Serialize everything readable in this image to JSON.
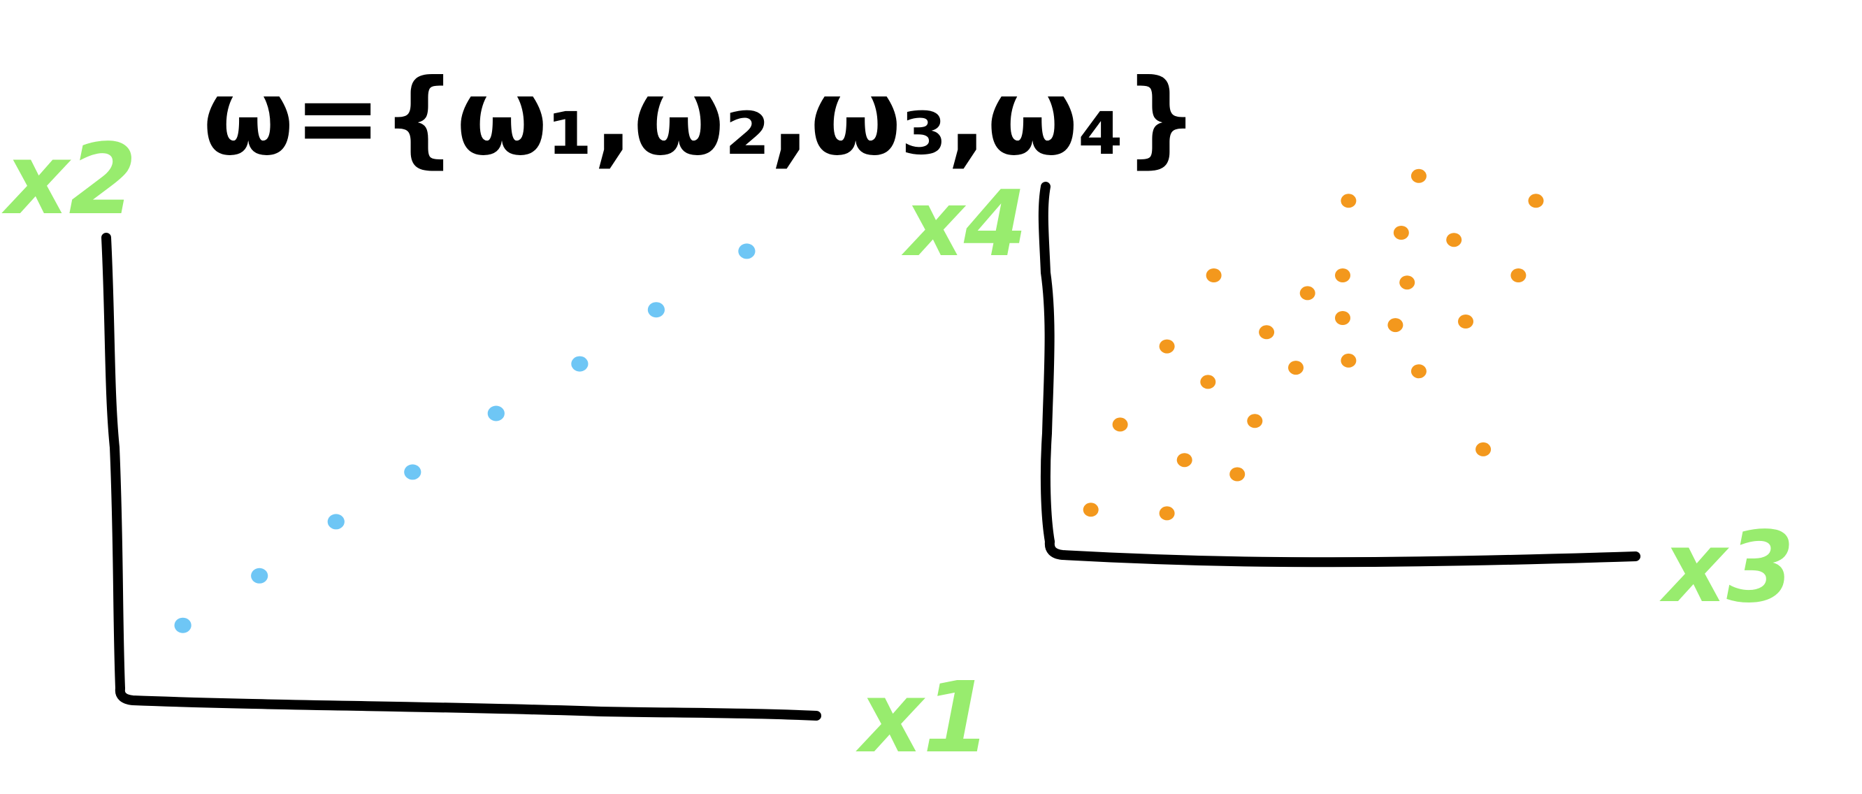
{
  "title": {
    "text": "ω={ω₁,ω₂,ω₃,ω₄}"
  },
  "colors": {
    "ink": "#000000",
    "axis_labels": "#98ec6e",
    "series_1": "#6ec6f5",
    "series_2": "#f3981d"
  },
  "chart_data": [
    {
      "type": "scatter",
      "xlabel": "x1",
      "ylabel": "x2",
      "xlim": [
        0,
        10
      ],
      "ylim": [
        0,
        10
      ],
      "grid": false,
      "points": [
        {
          "x": 0.9,
          "y": 1.4
        },
        {
          "x": 2.0,
          "y": 2.5
        },
        {
          "x": 3.1,
          "y": 3.7
        },
        {
          "x": 4.2,
          "y": 4.8
        },
        {
          "x": 5.4,
          "y": 6.1
        },
        {
          "x": 6.6,
          "y": 7.2
        },
        {
          "x": 7.7,
          "y": 8.4
        },
        {
          "x": 9.0,
          "y": 9.7
        }
      ]
    },
    {
      "type": "scatter",
      "xlabel": "x3",
      "ylabel": "x4",
      "xlim": [
        0,
        10
      ],
      "ylim": [
        0,
        10
      ],
      "grid": false,
      "points": [
        {
          "x": 0.7,
          "y": 0.9
        },
        {
          "x": 2.0,
          "y": 0.8
        },
        {
          "x": 1.2,
          "y": 3.3
        },
        {
          "x": 2.3,
          "y": 2.3
        },
        {
          "x": 3.2,
          "y": 1.9
        },
        {
          "x": 2.0,
          "y": 5.5
        },
        {
          "x": 2.7,
          "y": 4.5
        },
        {
          "x": 3.5,
          "y": 3.4
        },
        {
          "x": 2.8,
          "y": 7.5
        },
        {
          "x": 3.7,
          "y": 5.9
        },
        {
          "x": 4.2,
          "y": 4.9
        },
        {
          "x": 4.4,
          "y": 7.0
        },
        {
          "x": 5.0,
          "y": 6.3
        },
        {
          "x": 5.1,
          "y": 5.1
        },
        {
          "x": 5.1,
          "y": 9.6
        },
        {
          "x": 5.0,
          "y": 7.5
        },
        {
          "x": 5.9,
          "y": 6.1
        },
        {
          "x": 6.0,
          "y": 8.7
        },
        {
          "x": 6.1,
          "y": 7.3
        },
        {
          "x": 6.3,
          "y": 4.8
        },
        {
          "x": 6.3,
          "y": 10.3
        },
        {
          "x": 6.9,
          "y": 8.5
        },
        {
          "x": 7.1,
          "y": 6.2
        },
        {
          "x": 7.4,
          "y": 2.6
        },
        {
          "x": 8.0,
          "y": 7.5
        },
        {
          "x": 8.3,
          "y": 9.6
        }
      ]
    }
  ]
}
